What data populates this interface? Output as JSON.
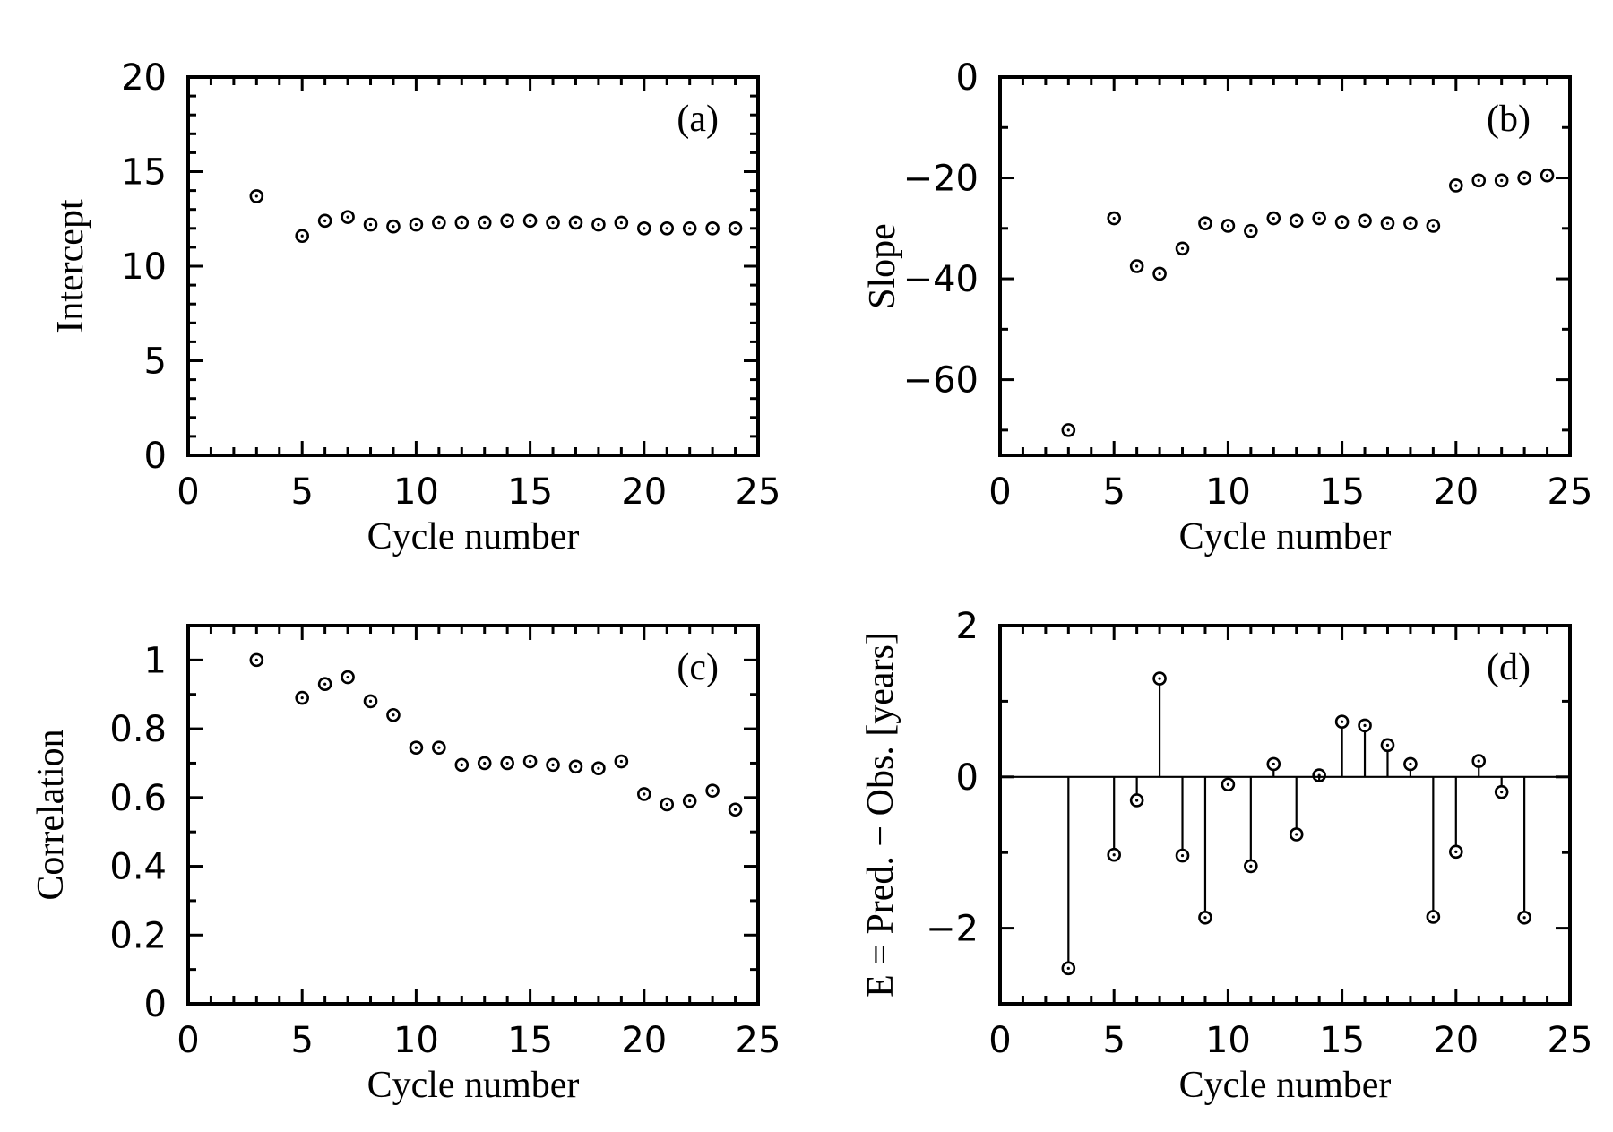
{
  "chart_data": [
    {
      "id": "a",
      "type": "scatter",
      "panel_label": "(a)",
      "xlabel": "Cycle number",
      "ylabel": "Intercept",
      "xlim": [
        0,
        25
      ],
      "ylim": [
        0,
        20
      ],
      "xticks": [
        0,
        5,
        10,
        15,
        20,
        25
      ],
      "yticks": [
        0,
        5,
        10,
        15,
        20
      ],
      "xtick_labels": [
        "0",
        "5",
        "10",
        "15",
        "20",
        "25"
      ],
      "ytick_labels": [
        "0",
        "5",
        "10",
        "15",
        "20"
      ],
      "x_minor_step": 1,
      "y_minor_step": 1,
      "stems": false,
      "zero_line": false,
      "series": [
        {
          "name": "Intercept",
          "x": [
            3,
            5,
            6,
            7,
            8,
            9,
            10,
            11,
            12,
            13,
            14,
            15,
            16,
            17,
            18,
            19,
            20,
            21,
            22,
            23,
            24
          ],
          "y": [
            13.7,
            11.6,
            12.4,
            12.6,
            12.2,
            12.1,
            12.2,
            12.3,
            12.3,
            12.3,
            12.4,
            12.4,
            12.3,
            12.3,
            12.2,
            12.3,
            12.0,
            12.0,
            12.0,
            12.0,
            12.0
          ]
        }
      ]
    },
    {
      "id": "b",
      "type": "scatter",
      "panel_label": "(b)",
      "xlabel": "Cycle number",
      "ylabel": "Slope",
      "xlim": [
        0,
        25
      ],
      "ylim": [
        -75,
        0
      ],
      "xticks": [
        0,
        5,
        10,
        15,
        20,
        25
      ],
      "yticks": [
        0,
        -20,
        -40,
        -60
      ],
      "xtick_labels": [
        "0",
        "5",
        "10",
        "15",
        "20",
        "25"
      ],
      "ytick_labels": [
        "0",
        "−20",
        "−40",
        "−60"
      ],
      "x_minor_step": 1,
      "y_minor_step": 10,
      "stems": false,
      "zero_line": false,
      "series": [
        {
          "name": "Slope",
          "x": [
            3,
            5,
            6,
            7,
            8,
            9,
            10,
            11,
            12,
            13,
            14,
            15,
            16,
            17,
            18,
            19,
            20,
            21,
            22,
            23,
            24
          ],
          "y": [
            -70.0,
            -28.0,
            -37.5,
            -39.0,
            -34.0,
            -29.0,
            -29.5,
            -30.5,
            -28.0,
            -28.5,
            -28.0,
            -28.8,
            -28.5,
            -29.0,
            -29.0,
            -29.5,
            -21.5,
            -20.5,
            -20.5,
            -20.0,
            -19.5
          ]
        }
      ]
    },
    {
      "id": "c",
      "type": "scatter",
      "panel_label": "(c)",
      "xlabel": "Cycle number",
      "ylabel": "Correlation",
      "xlim": [
        0,
        25
      ],
      "ylim": [
        0,
        1.1
      ],
      "xticks": [
        0,
        5,
        10,
        15,
        20,
        25
      ],
      "yticks": [
        0,
        0.2,
        0.4,
        0.6,
        0.8,
        1
      ],
      "xtick_labels": [
        "0",
        "5",
        "10",
        "15",
        "20",
        "25"
      ],
      "ytick_labels": [
        "0",
        "0.2",
        "0.4",
        "0.6",
        "0.8",
        "1"
      ],
      "x_minor_step": 1,
      "y_minor_step": 0.1,
      "stems": false,
      "zero_line": false,
      "series": [
        {
          "name": "Correlation",
          "x": [
            3,
            5,
            6,
            7,
            8,
            9,
            10,
            11,
            12,
            13,
            14,
            15,
            16,
            17,
            18,
            19,
            20,
            21,
            22,
            23,
            24
          ],
          "y": [
            1.0,
            0.89,
            0.93,
            0.95,
            0.88,
            0.84,
            0.745,
            0.745,
            0.695,
            0.7,
            0.7,
            0.705,
            0.695,
            0.69,
            0.685,
            0.705,
            0.61,
            0.58,
            0.59,
            0.62,
            0.565
          ]
        }
      ]
    },
    {
      "id": "d",
      "type": "scatter",
      "panel_label": "(d)",
      "xlabel": "Cycle number",
      "ylabel": "E = Pred. − Obs. [years]",
      "xlim": [
        0,
        25
      ],
      "ylim": [
        -3,
        2
      ],
      "xticks": [
        0,
        5,
        10,
        15,
        20,
        25
      ],
      "yticks": [
        -2,
        0,
        2
      ],
      "xtick_labels": [
        "0",
        "5",
        "10",
        "15",
        "20",
        "25"
      ],
      "ytick_labels": [
        "−2",
        "0",
        "2"
      ],
      "x_minor_step": 1,
      "y_minor_step": 1,
      "stems": true,
      "zero_line": true,
      "series": [
        {
          "name": "Prediction error",
          "x": [
            3,
            5,
            6,
            7,
            8,
            9,
            10,
            11,
            12,
            13,
            14,
            15,
            16,
            17,
            18,
            19,
            20,
            21,
            22,
            23
          ],
          "y": [
            -2.53,
            -1.03,
            -0.31,
            1.3,
            -1.04,
            -1.86,
            -0.1,
            -1.18,
            0.17,
            -0.76,
            0.02,
            0.73,
            0.68,
            0.42,
            0.17,
            -1.85,
            -0.99,
            0.21,
            -0.2,
            -1.86
          ]
        }
      ]
    }
  ]
}
